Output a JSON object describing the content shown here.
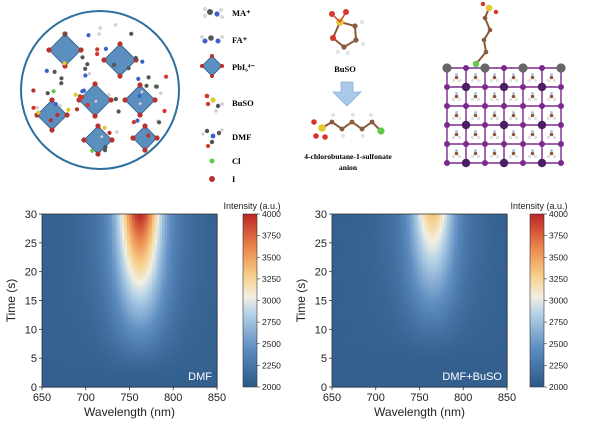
{
  "legend": {
    "ma": "MA⁺",
    "fa": "FA⁺",
    "pbi": "PbI₆⁴⁻",
    "buso": "BuSO",
    "dmf": "DMF",
    "cl": "Cl",
    "i": "I"
  },
  "molecule": {
    "buso_label": "BuSO",
    "anion_line1": "4-chlorobutane-1-sulfonate",
    "anion_line2": "anion"
  },
  "colors": {
    "sphere_border": "#2e6f9e",
    "octahedron": "#5b8fbf",
    "arrow": "#a9c8ea",
    "iodide": "#b8312d",
    "chlorine": "#5fc94a",
    "sulfur": "#e6c631",
    "oxygen": "#d6352a",
    "carbon": "#8a5a3c",
    "lattice": "#7b2a8c"
  },
  "chart_data": [
    {
      "type": "heatmap",
      "label": "DMF",
      "xlabel": "Wavelength (nm)",
      "ylabel": "Time (s)",
      "xlim": [
        650,
        850
      ],
      "ylim": [
        0,
        30
      ],
      "xticks": [
        650,
        700,
        750,
        800,
        850
      ],
      "yticks": [
        0,
        5,
        10,
        15,
        20,
        25,
        30
      ],
      "colorbar": {
        "title": "Intensity (a.u.)",
        "min": 2000,
        "max": 4000,
        "ticks": [
          2000,
          2250,
          2500,
          2750,
          3000,
          3250,
          3500,
          3750,
          4000
        ]
      },
      "peak_nm": 762,
      "peak_intensity": 4000,
      "onset_s": 2
    },
    {
      "type": "heatmap",
      "label": "DMF+BuSO",
      "xlabel": "Wavelength (nm)",
      "ylabel": "Time (s)",
      "xlim": [
        650,
        850
      ],
      "ylim": [
        0,
        30
      ],
      "xticks": [
        650,
        700,
        750,
        800,
        850
      ],
      "yticks": [
        0,
        5,
        10,
        15,
        20,
        25,
        30
      ],
      "colorbar": {
        "title": "Intensity (a.u.)",
        "min": 2000,
        "max": 4000,
        "ticks": [
          2000,
          2250,
          2500,
          2750,
          3000,
          3250,
          3500,
          3750,
          4000
        ]
      },
      "peak_nm": 765,
      "peak_intensity": 3350,
      "onset_s": 5
    }
  ]
}
